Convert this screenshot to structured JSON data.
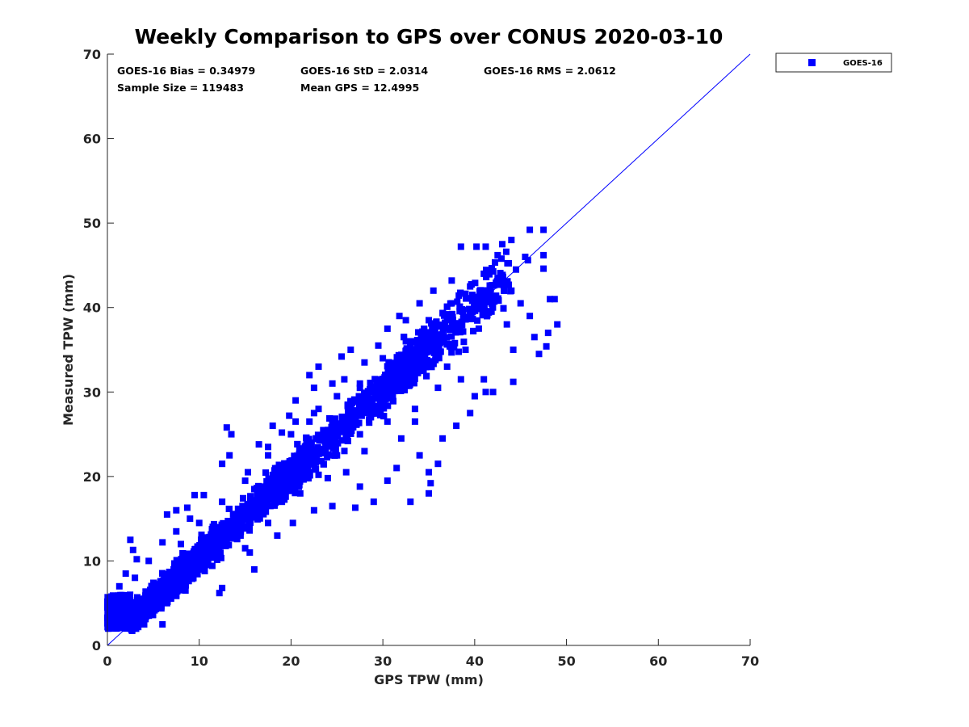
{
  "chart_data": {
    "type": "scatter",
    "title": "Weekly Comparison to GPS over CONUS 2020-03-10",
    "xlabel": "GPS TPW (mm)",
    "ylabel": "Measured TPW (mm)",
    "xlim": [
      0,
      70
    ],
    "ylim": [
      0,
      70
    ],
    "xticks": [
      "0",
      "10",
      "20",
      "30",
      "40",
      "50",
      "60",
      "70"
    ],
    "yticks": [
      "0",
      "10",
      "20",
      "30",
      "40",
      "50",
      "60",
      "70"
    ],
    "legend": {
      "position": "top-right-outside",
      "entries": [
        "GOES-16"
      ]
    },
    "stats": {
      "bias": "GOES-16 Bias = 0.34979",
      "std": "GOES-16 StD = 2.0314",
      "rms": "GOES-16 RMS = 2.0612",
      "sample_size": "Sample Size = 119483",
      "mean_gps": "Mean GPS = 12.4995"
    },
    "reference_line": {
      "name": "1:1 line",
      "x": [
        0,
        70
      ],
      "y": [
        0,
        70
      ]
    },
    "series": [
      {
        "name": "GOES-16",
        "color": "#0000ff",
        "marker": "square",
        "note": "dense cloud of 119483 points; representative outliers listed",
        "points": [
          [
            46,
            49.2
          ],
          [
            47.5,
            49.2
          ],
          [
            40.2,
            47.2
          ],
          [
            41.2,
            47.2
          ],
          [
            45.5,
            46
          ],
          [
            47.5,
            46.2
          ],
          [
            47.5,
            44.6
          ],
          [
            48.2,
            41
          ],
          [
            48.7,
            41
          ],
          [
            49,
            38
          ],
          [
            48,
            37
          ],
          [
            47.8,
            35.4
          ],
          [
            47,
            34.5
          ],
          [
            46.5,
            36.5
          ],
          [
            44.2,
            31.2
          ],
          [
            42,
            30
          ],
          [
            41.2,
            30
          ],
          [
            38.5,
            31.5
          ],
          [
            44.2,
            35
          ],
          [
            38.5,
            47.2
          ],
          [
            44,
            48
          ],
          [
            43,
            47.5
          ],
          [
            42.5,
            46.2
          ],
          [
            45.8,
            45.6
          ],
          [
            37.5,
            43.2
          ],
          [
            35.5,
            42
          ],
          [
            34,
            40.5
          ],
          [
            32.5,
            38.5
          ],
          [
            31.8,
            39
          ],
          [
            30.5,
            37.5
          ],
          [
            29.5,
            35.5
          ],
          [
            26.5,
            35
          ],
          [
            25.5,
            34.2
          ],
          [
            22,
            32
          ],
          [
            23,
            33
          ],
          [
            25.8,
            31.5
          ],
          [
            20.5,
            29
          ],
          [
            22.5,
            30.5
          ],
          [
            24.5,
            31
          ],
          [
            28,
            33.5
          ],
          [
            13,
            25.8
          ],
          [
            13.5,
            25
          ],
          [
            16.5,
            23.8
          ],
          [
            19,
            25.2
          ],
          [
            19.8,
            27.2
          ],
          [
            17.5,
            22.5
          ],
          [
            20.5,
            26.5
          ],
          [
            23,
            28
          ],
          [
            13.3,
            22.5
          ],
          [
            12.5,
            21.5
          ],
          [
            10.5,
            17.8
          ],
          [
            6.5,
            15.5
          ],
          [
            7.5,
            16
          ],
          [
            8.7,
            16.3
          ],
          [
            9.5,
            17.8
          ],
          [
            2.5,
            12.5
          ],
          [
            2.8,
            11.3
          ],
          [
            3.2,
            10.2
          ],
          [
            2,
            8.5
          ],
          [
            1.3,
            7
          ],
          [
            0.5,
            5.5
          ],
          [
            0,
            4.5
          ],
          [
            1,
            2
          ],
          [
            2,
            2
          ],
          [
            4,
            2.5
          ],
          [
            6,
            2.5
          ],
          [
            2.5,
            4.5
          ],
          [
            6.5,
            5
          ],
          [
            8.5,
            6.5
          ],
          [
            12.2,
            6.2
          ],
          [
            12.5,
            6.8
          ],
          [
            16,
            9
          ],
          [
            18.5,
            13
          ],
          [
            20.2,
            14.5
          ],
          [
            22.5,
            16
          ],
          [
            24.5,
            16.5
          ],
          [
            27,
            16.3
          ],
          [
            29,
            17
          ],
          [
            30.5,
            19.5
          ],
          [
            31.5,
            21
          ],
          [
            33,
            17
          ],
          [
            35,
            18
          ],
          [
            35.2,
            19.2
          ],
          [
            35,
            20.5
          ],
          [
            36,
            21.5
          ],
          [
            36.5,
            24.5
          ],
          [
            38,
            26
          ],
          [
            39.5,
            27.5
          ],
          [
            40,
            29.5
          ],
          [
            41,
            31.5
          ],
          [
            36,
            30.5
          ],
          [
            34,
            22.5
          ],
          [
            33.5,
            26.5
          ],
          [
            32,
            24.5
          ],
          [
            28,
            23
          ],
          [
            27.5,
            18.8
          ],
          [
            26,
            20.5
          ],
          [
            24,
            19.8
          ],
          [
            23,
            20.2
          ],
          [
            21,
            18
          ],
          [
            19,
            17
          ],
          [
            17.5,
            14.5
          ],
          [
            15.5,
            11
          ],
          [
            15,
            11.5
          ],
          [
            14.5,
            13
          ],
          [
            10.5,
            9
          ],
          [
            9.5,
            8.5
          ],
          [
            11,
            12.5
          ],
          [
            12,
            14
          ],
          [
            14.5,
            15.5
          ],
          [
            16,
            18.5
          ],
          [
            18.5,
            21
          ],
          [
            21,
            22
          ],
          [
            24,
            25
          ],
          [
            26,
            27
          ],
          [
            28,
            29
          ],
          [
            30,
            30.5
          ],
          [
            32,
            32.5
          ],
          [
            34,
            34
          ],
          [
            36,
            36
          ],
          [
            38,
            38
          ],
          [
            40,
            40
          ],
          [
            42,
            41
          ],
          [
            41,
            44
          ],
          [
            44,
            42
          ],
          [
            45,
            40.5
          ],
          [
            46,
            39
          ],
          [
            43.5,
            38
          ],
          [
            39,
            35
          ],
          [
            37,
            33
          ],
          [
            33.5,
            28
          ],
          [
            30.5,
            26.5
          ],
          [
            27.5,
            25
          ],
          [
            25,
            22.5
          ],
          [
            22,
            20.5
          ],
          [
            19.5,
            19
          ],
          [
            17,
            16
          ],
          [
            14,
            13
          ],
          [
            11.5,
            10.5
          ],
          [
            9,
            10
          ],
          [
            7,
            8
          ],
          [
            5,
            6
          ],
          [
            3.5,
            5
          ],
          [
            2,
            3.5
          ],
          [
            6,
            12.2
          ],
          [
            4.5,
            10
          ],
          [
            8,
            12
          ],
          [
            10,
            14.5
          ],
          [
            12.5,
            17
          ],
          [
            15,
            19.5
          ],
          [
            17.5,
            23.5
          ],
          [
            20,
            25
          ],
          [
            22.5,
            27.5
          ],
          [
            25,
            29.5
          ],
          [
            27.5,
            31
          ],
          [
            30,
            34
          ],
          [
            32.5,
            36
          ],
          [
            35,
            38.5
          ],
          [
            37.5,
            40.5
          ],
          [
            39.5,
            42.5
          ],
          [
            42.5,
            43.5
          ],
          [
            44.5,
            44.5
          ],
          [
            15.3,
            20.5
          ],
          [
            18,
            26
          ],
          [
            22,
            26.5
          ],
          [
            9,
            15
          ],
          [
            7.5,
            13.5
          ],
          [
            3,
            8
          ],
          [
            1.5,
            5.5
          ]
        ]
      }
    ]
  }
}
